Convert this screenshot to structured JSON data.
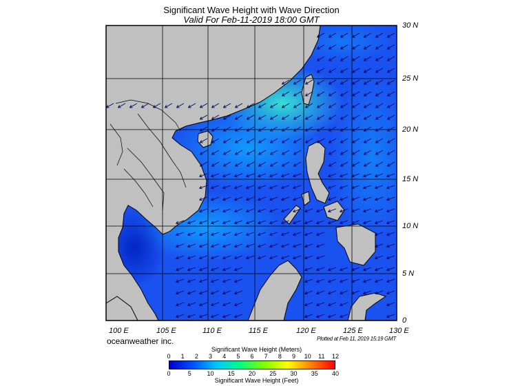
{
  "title": "Significant Wave Height with Wave Direction",
  "subtitle": "Valid For Feb-11-2019 18:00 GMT",
  "credit": "oceanweather inc.",
  "plotted": "Plotted at Feb 11, 2019 15:19 GMT",
  "lat_labels": [
    "30 N",
    "25 N",
    "20 N",
    "15 N",
    "10 N",
    "5 N",
    "0"
  ],
  "lon_labels": [
    "100 E",
    "105 E",
    "110 E",
    "115 E",
    "120 E",
    "125 E",
    "130 E"
  ],
  "colorbar": {
    "title_meters": "Significant Wave Height (Meters)",
    "title_feet": "Significant Wave Height (Feet)",
    "ticks_meters": [
      "0",
      "1",
      "2",
      "3",
      "4",
      "5",
      "6",
      "7",
      "8",
      "9",
      "10",
      "11",
      "12"
    ],
    "ticks_feet": [
      "0",
      "5",
      "10",
      "15",
      "20",
      "25",
      "30",
      "35",
      "40"
    ],
    "colors": [
      "#0000c8",
      "#0050ff",
      "#00c8ff",
      "#00ff80",
      "#80ff00",
      "#ffff00",
      "#ff8000",
      "#ff0000"
    ]
  },
  "colors": {
    "land": "#c0c0c0",
    "sea_low": "#1e5aff",
    "sea_high": "#00dcc8",
    "arrow": "#000060"
  },
  "icons": {
    "wave_arrow": "arrow-icon"
  }
}
